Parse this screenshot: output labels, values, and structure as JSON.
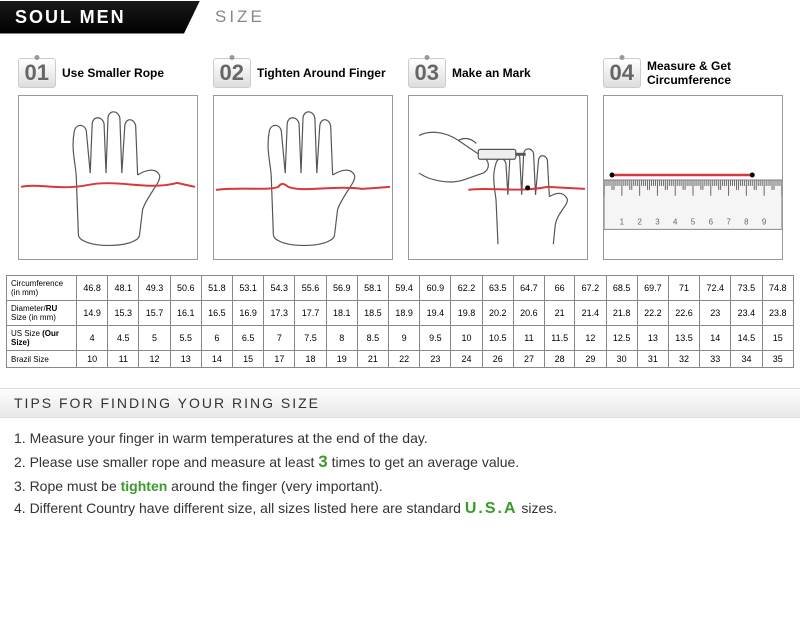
{
  "header": {
    "brand": "SOUL MEN",
    "sub": "SIZE"
  },
  "steps": [
    {
      "num": "01",
      "label": "Use Smaller Rope"
    },
    {
      "num": "02",
      "label": "Tighten Around Finger"
    },
    {
      "num": "03",
      "label": "Make an Mark"
    },
    {
      "num": "04",
      "label": "Measure & Get Circumference"
    }
  ],
  "table": {
    "rows": [
      {
        "label": "Circumference (in mm)",
        "cells": [
          "46.8",
          "48.1",
          "49.3",
          "50.6",
          "51.8",
          "53.1",
          "54.3",
          "55.6",
          "56.9",
          "58.1",
          "59.4",
          "60.9",
          "62.2",
          "63.5",
          "64.7",
          "66",
          "67.2",
          "68.5",
          "69.7",
          "71",
          "72.4",
          "73.5",
          "74.8"
        ]
      },
      {
        "label": "Diameter/RU Size (in mm)",
        "cells": [
          "14.9",
          "15.3",
          "15.7",
          "16.1",
          "16.5",
          "16.9",
          "17.3",
          "17.7",
          "18.1",
          "18.5",
          "18.9",
          "19.4",
          "19.8",
          "20.2",
          "20.6",
          "21",
          "21.4",
          "21.8",
          "22.2",
          "22.6",
          "23",
          "23.4",
          "23.8"
        ]
      },
      {
        "label": "US Size (Our Size)",
        "cells": [
          "4",
          "4.5",
          "5",
          "5.5",
          "6",
          "6.5",
          "7",
          "7.5",
          "8",
          "8.5",
          "9",
          "9.5",
          "10",
          "10.5",
          "11",
          "11.5",
          "12",
          "12.5",
          "13",
          "13.5",
          "14",
          "14.5",
          "15"
        ]
      },
      {
        "label": "Brazil Size",
        "cells": [
          "10",
          "11",
          "12",
          "13",
          "14",
          "15",
          "17",
          "18",
          "19",
          "21",
          "22",
          "23",
          "24",
          "26",
          "27",
          "28",
          "29",
          "30",
          "31",
          "32",
          "33",
          "34",
          "35"
        ]
      }
    ]
  },
  "tips": {
    "title": "TIPS FOR FINDING YOUR RING SIZE",
    "t1a": "1. Measure your finger in warm temperatures at the end of the day.",
    "t2a": "2. Please use smaller rope and measure at least ",
    "t2b": "3",
    "t2c": " times to get an average value.",
    "t3a": "3. Rope must be ",
    "t3b": "tighten",
    "t3c": " around the finger (very important).",
    "t4a": "4. Different Country have different size, all sizes listed here are standard ",
    "t4b": "U.S.A",
    "t4c": " sizes."
  },
  "style": {
    "rope_color": "#d93838",
    "hand_stroke": "#555",
    "ruler_stroke": "#888",
    "highlight_green": "#3a9a2a"
  }
}
